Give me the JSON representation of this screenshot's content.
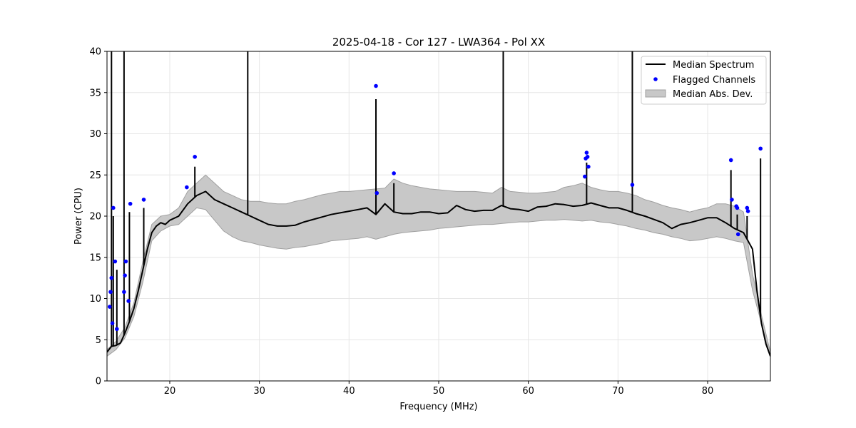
{
  "chart_data": {
    "type": "line",
    "title": "2025-04-18 - Cor 127 - LWA364 - Pol XX",
    "xlabel": "Frequency (MHz)",
    "ylabel": "Power (CPU)",
    "xlim": [
      13.0,
      87.0
    ],
    "ylim": [
      0,
      40
    ],
    "x_ticks": [
      20,
      30,
      40,
      50,
      60,
      70,
      80
    ],
    "y_ticks": [
      0,
      5,
      10,
      15,
      20,
      25,
      30,
      35,
      40
    ],
    "grid": true,
    "legend": {
      "placement": "top-right",
      "entries": [
        "Median Spectrum",
        "Flagged Channels",
        "Median Abs. Dev."
      ]
    },
    "colors": {
      "median": "#000000",
      "flagged": "#0000ff",
      "mad_fill": "#c8c8c8",
      "mad_edge": "#a0a0a0",
      "grid": "#e6e6e6"
    },
    "series": [
      {
        "name": "Median Spectrum",
        "x": [
          13.0,
          13.5,
          14.0,
          14.5,
          15.0,
          15.5,
          16.0,
          16.5,
          17.0,
          17.5,
          18.0,
          18.5,
          19.0,
          19.5,
          20.0,
          21.0,
          22.0,
          23.0,
          24.0,
          25.0,
          26.0,
          27.0,
          28.0,
          29.0,
          30.0,
          31.0,
          32.0,
          33.0,
          34.0,
          35.0,
          36.0,
          37.0,
          38.0,
          39.0,
          40.0,
          41.0,
          42.0,
          43.0,
          44.0,
          45.0,
          46.0,
          47.0,
          48.0,
          49.0,
          50.0,
          51.0,
          52.0,
          53.0,
          54.0,
          55.0,
          56.0,
          57.0,
          58.0,
          59.0,
          60.0,
          61.0,
          62.0,
          63.0,
          64.0,
          65.0,
          66.0,
          67.0,
          68.0,
          69.0,
          70.0,
          71.0,
          72.0,
          73.0,
          74.0,
          75.0,
          76.0,
          77.0,
          78.0,
          79.0,
          80.0,
          81.0,
          82.0,
          83.0,
          84.0,
          84.5,
          85.0,
          85.5,
          86.0,
          86.5,
          87.0
        ],
        "y": [
          3.5,
          4.2,
          4.3,
          4.6,
          5.8,
          7.2,
          8.8,
          11.0,
          13.5,
          16.0,
          18.0,
          18.8,
          19.2,
          19.0,
          19.5,
          20.0,
          21.5,
          22.5,
          23.0,
          22.0,
          21.5,
          21.0,
          20.5,
          20.0,
          19.5,
          19.0,
          18.8,
          18.8,
          18.9,
          19.3,
          19.6,
          19.9,
          20.2,
          20.4,
          20.6,
          20.8,
          21.0,
          20.2,
          21.5,
          20.5,
          20.3,
          20.3,
          20.5,
          20.5,
          20.3,
          20.4,
          21.3,
          20.8,
          20.6,
          20.7,
          20.7,
          21.3,
          20.9,
          20.8,
          20.6,
          21.1,
          21.2,
          21.5,
          21.4,
          21.2,
          21.3,
          21.6,
          21.3,
          21.0,
          21.0,
          20.7,
          20.3,
          20.0,
          19.6,
          19.2,
          18.5,
          19.0,
          19.2,
          19.5,
          19.8,
          19.8,
          19.2,
          18.5,
          18.0,
          17.0,
          16.0,
          11.0,
          7.0,
          4.5,
          3.0
        ]
      },
      {
        "name": "Median Abs. Dev.",
        "x": [
          13.0,
          14.0,
          15.0,
          16.0,
          17.0,
          18.0,
          19.0,
          20.0,
          21.0,
          22.0,
          23.0,
          24.0,
          25.0,
          26.0,
          27.0,
          28.0,
          29.0,
          30.0,
          31.0,
          32.0,
          33.0,
          34.0,
          35.0,
          36.0,
          37.0,
          38.0,
          39.0,
          40.0,
          41.0,
          42.0,
          43.0,
          44.0,
          45.0,
          46.0,
          47.0,
          48.0,
          49.0,
          50.0,
          51.0,
          52.0,
          53.0,
          54.0,
          55.0,
          56.0,
          57.0,
          58.0,
          59.0,
          60.0,
          61.0,
          62.0,
          63.0,
          64.0,
          65.0,
          66.0,
          67.0,
          68.0,
          69.0,
          70.0,
          71.0,
          72.0,
          73.0,
          74.0,
          75.0,
          76.0,
          77.0,
          78.0,
          79.0,
          80.0,
          81.0,
          82.0,
          83.0,
          84.0,
          85.0,
          86.0,
          87.0
        ],
        "lower": [
          3.0,
          3.8,
          5.2,
          7.8,
          12.0,
          17.0,
          18.2,
          18.8,
          19.0,
          20.0,
          21.0,
          20.8,
          19.5,
          18.2,
          17.5,
          17.0,
          16.8,
          16.5,
          16.3,
          16.1,
          16.0,
          16.2,
          16.3,
          16.5,
          16.7,
          17.0,
          17.1,
          17.2,
          17.3,
          17.5,
          17.2,
          17.5,
          17.8,
          18.0,
          18.1,
          18.2,
          18.3,
          18.5,
          18.6,
          18.7,
          18.8,
          18.9,
          19.0,
          19.0,
          19.1,
          19.2,
          19.3,
          19.3,
          19.4,
          19.5,
          19.5,
          19.6,
          19.5,
          19.4,
          19.5,
          19.3,
          19.2,
          19.0,
          18.8,
          18.5,
          18.3,
          18.0,
          17.8,
          17.5,
          17.3,
          17.0,
          17.1,
          17.3,
          17.5,
          17.3,
          17.0,
          16.8,
          11.0,
          7.0,
          3.0
        ],
        "upper": [
          3.8,
          4.8,
          6.5,
          9.5,
          14.5,
          19.0,
          20.0,
          20.2,
          21.0,
          23.0,
          24.0,
          25.0,
          24.0,
          23.0,
          22.5,
          22.0,
          21.8,
          21.8,
          21.6,
          21.5,
          21.5,
          21.8,
          22.0,
          22.3,
          22.6,
          22.8,
          23.0,
          23.0,
          23.1,
          23.2,
          23.3,
          23.4,
          24.5,
          24.0,
          23.7,
          23.5,
          23.3,
          23.2,
          23.1,
          23.0,
          23.0,
          23.0,
          22.9,
          22.8,
          23.5,
          23.0,
          22.9,
          22.8,
          22.8,
          22.9,
          23.0,
          23.5,
          23.7,
          24.0,
          23.5,
          23.2,
          23.0,
          23.0,
          22.8,
          22.5,
          22.0,
          21.7,
          21.3,
          21.0,
          20.8,
          20.5,
          20.8,
          21.0,
          21.5,
          21.5,
          21.2,
          20.5,
          13.0,
          8.0,
          3.5
        ]
      },
      {
        "name": "Flagged Channels",
        "x": [
          13.3,
          13.4,
          13.5,
          13.6,
          13.7,
          13.9,
          14.1,
          14.9,
          15.0,
          15.1,
          15.4,
          15.6,
          17.1,
          21.9,
          22.8,
          43.0,
          43.1,
          45.0,
          66.3,
          66.4,
          66.5,
          66.6,
          66.7,
          71.6,
          82.6,
          82.7,
          83.2,
          83.3,
          83.4,
          84.4,
          84.5,
          85.9
        ],
        "y": [
          9.0,
          10.8,
          12.5,
          7.0,
          21.0,
          14.5,
          6.3,
          10.8,
          12.8,
          14.5,
          9.7,
          21.5,
          22.0,
          23.5,
          27.2,
          35.8,
          22.8,
          25.2,
          24.8,
          27.0,
          27.7,
          27.2,
          26.0,
          23.8,
          26.8,
          22.0,
          21.2,
          21.0,
          17.8,
          21.0,
          20.6,
          28.2
        ]
      }
    ],
    "spikes": [
      {
        "x": 13.5,
        "peak": 40
      },
      {
        "x": 13.7,
        "peak": 20
      },
      {
        "x": 14.1,
        "peak": 13.5
      },
      {
        "x": 14.9,
        "peak": 40
      },
      {
        "x": 15.5,
        "peak": 20.5
      },
      {
        "x": 17.1,
        "peak": 21.0
      },
      {
        "x": 22.8,
        "peak": 26.0
      },
      {
        "x": 28.7,
        "peak": 40
      },
      {
        "x": 43.0,
        "peak": 34.2
      },
      {
        "x": 45.0,
        "peak": 24.0
      },
      {
        "x": 57.2,
        "peak": 40
      },
      {
        "x": 66.5,
        "peak": 26.5
      },
      {
        "x": 71.6,
        "peak": 40
      },
      {
        "x": 82.6,
        "peak": 25.6
      },
      {
        "x": 83.3,
        "peak": 20.2
      },
      {
        "x": 84.4,
        "peak": 20.0
      },
      {
        "x": 85.9,
        "peak": 27.0
      }
    ]
  }
}
